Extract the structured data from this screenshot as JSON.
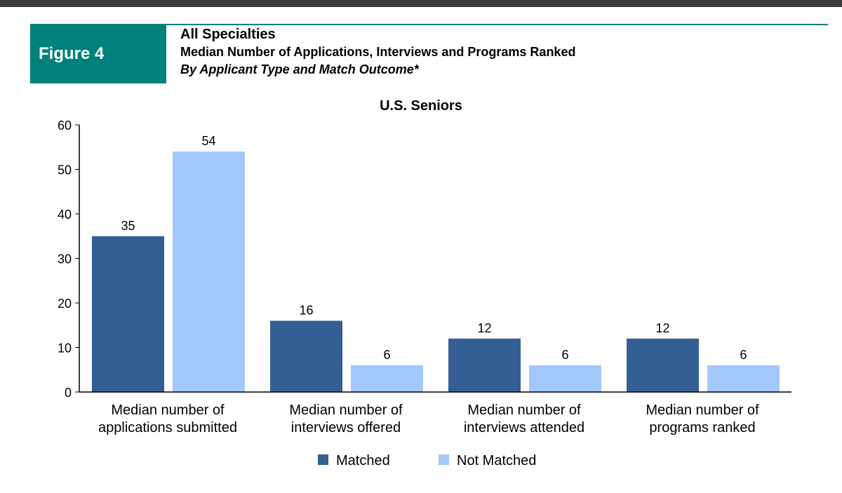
{
  "figure": {
    "label": "Figure 4",
    "title": "All Specialties",
    "subtitle": "Median Number of Applications, Interviews and Programs Ranked",
    "subtitle2": "By Applicant Type and Match Outcome*"
  },
  "colors": {
    "matched": "#345f94",
    "not_matched": "#a3c8fb",
    "accent": "#00817c"
  },
  "chart_data": {
    "type": "bar",
    "title": "U.S. Seniors",
    "categories": [
      [
        "Median number of",
        "applications submitted"
      ],
      [
        "Median number of",
        "interviews offered"
      ],
      [
        "Median number of",
        "interviews attended"
      ],
      [
        "Median number of",
        "programs ranked"
      ]
    ],
    "series": [
      {
        "name": "Matched",
        "values": [
          35,
          16,
          12,
          12
        ]
      },
      {
        "name": "Not Matched",
        "values": [
          54,
          6,
          6,
          6
        ]
      }
    ],
    "ylim": [
      0,
      60
    ],
    "yticks": [
      0,
      10,
      20,
      30,
      40,
      50,
      60
    ],
    "grid": false,
    "legend": "bottom"
  }
}
